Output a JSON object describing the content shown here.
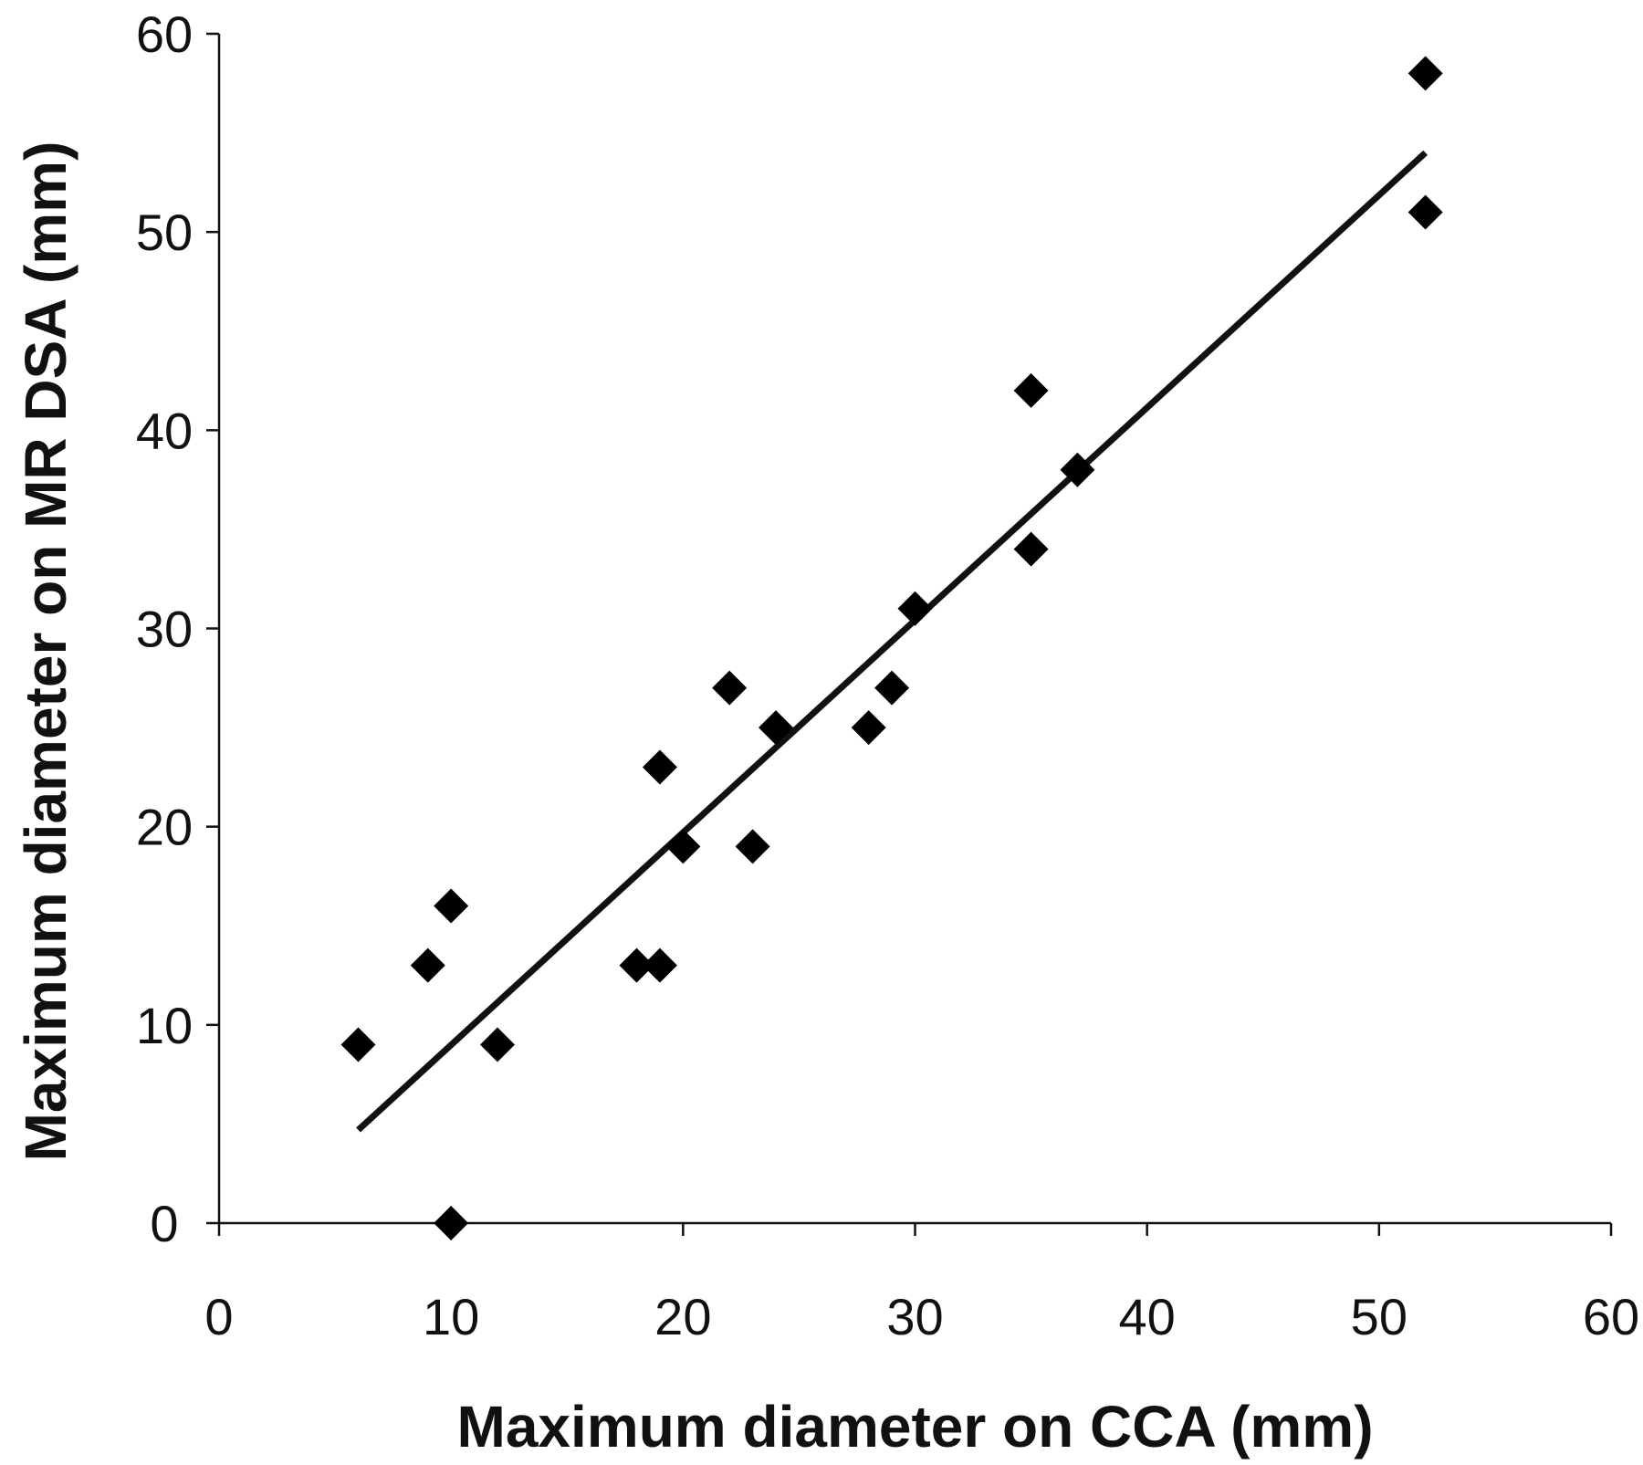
{
  "chart_data": {
    "type": "scatter",
    "xlabel": "Maximum diameter on CCA (mm)",
    "ylabel": "Maximum diameter on MR DSA (mm)",
    "xlim": [
      0,
      60
    ],
    "ylim": [
      0,
      60
    ],
    "x_ticks": [
      "0",
      "10",
      "20",
      "30",
      "40",
      "50",
      "60"
    ],
    "y_ticks": [
      "0",
      "10",
      "20",
      "30",
      "40",
      "50",
      "60"
    ],
    "grid": false,
    "marker": "diamond",
    "color": "#000000",
    "points": [
      {
        "x": 6,
        "y": 9
      },
      {
        "x": 9,
        "y": 13
      },
      {
        "x": 10,
        "y": 16
      },
      {
        "x": 10,
        "y": 0
      },
      {
        "x": 12,
        "y": 9
      },
      {
        "x": 18,
        "y": 13
      },
      {
        "x": 19,
        "y": 13
      },
      {
        "x": 19,
        "y": 23
      },
      {
        "x": 20,
        "y": 19
      },
      {
        "x": 22,
        "y": 27
      },
      {
        "x": 23,
        "y": 19
      },
      {
        "x": 24,
        "y": 25
      },
      {
        "x": 28,
        "y": 25
      },
      {
        "x": 29,
        "y": 27
      },
      {
        "x": 30,
        "y": 31
      },
      {
        "x": 35,
        "y": 42
      },
      {
        "x": 35,
        "y": 34
      },
      {
        "x": 37,
        "y": 38
      },
      {
        "x": 52,
        "y": 58
      },
      {
        "x": 52,
        "y": 51
      }
    ],
    "trendline": {
      "x": [
        6,
        52
      ],
      "y": [
        4.7,
        54
      ]
    }
  }
}
